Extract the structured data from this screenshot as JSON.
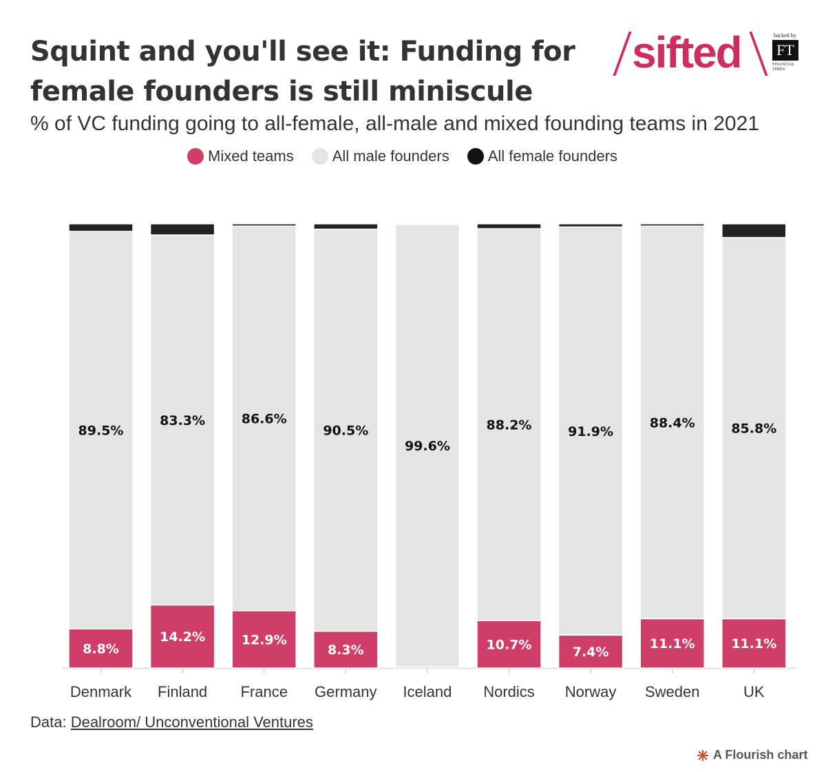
{
  "header": {
    "title": "Squint and you'll see it: Funding for female founders is still miniscule",
    "subtitle": "% of VC funding going to all-female, all-male and mixed founding teams in 2021"
  },
  "logo": {
    "brand": "sifted",
    "backed_by": "backed by",
    "ft": "FT",
    "ft_name": "FINANCIAL TIMES",
    "brand_color": "#cc2f5f"
  },
  "legend": [
    {
      "label": "Mixed teams",
      "color": "#cf3d69"
    },
    {
      "label": "All male founders",
      "color": "#e4e4e4"
    },
    {
      "label": "All female founders",
      "color": "#111111"
    }
  ],
  "chart_data": {
    "type": "bar",
    "stacked": true,
    "categories": [
      "Denmark",
      "Finland",
      "France",
      "Germany",
      "Iceland",
      "Nordics",
      "Norway",
      "Sweden",
      "UK"
    ],
    "series": [
      {
        "name": "Mixed teams",
        "color": "#cf3d69",
        "values": [
          8.8,
          14.2,
          12.9,
          8.3,
          0.3,
          10.7,
          7.4,
          11.1,
          11.1
        ],
        "labels": [
          "8.8%",
          "14.2%",
          "12.9%",
          "8.3%",
          "",
          "10.7%",
          "7.4%",
          "11.1%",
          "11.1%"
        ]
      },
      {
        "name": "All male founders",
        "color": "#e4e4e4",
        "values": [
          89.5,
          83.3,
          86.6,
          90.5,
          99.6,
          88.2,
          91.9,
          88.4,
          85.8
        ],
        "labels": [
          "89.5%",
          "83.3%",
          "86.6%",
          "90.5%",
          "99.6%",
          "88.2%",
          "91.9%",
          "88.4%",
          "85.8%"
        ]
      },
      {
        "name": "All female founders",
        "color": "#222222",
        "values": [
          1.7,
          2.5,
          0.5,
          1.2,
          0.1,
          1.1,
          0.7,
          0.5,
          3.1
        ],
        "labels": [
          "",
          "",
          "",
          "",
          "",
          "",
          "",
          "",
          ""
        ]
      }
    ],
    "ylim": [
      0,
      100
    ],
    "xlabel": "",
    "ylabel": "",
    "grid": false,
    "legend_position": "top"
  },
  "footer": {
    "source_prefix": "Data: ",
    "source_link": "Dealroom/ Unconventional Ventures",
    "credit": "A Flourish chart"
  }
}
